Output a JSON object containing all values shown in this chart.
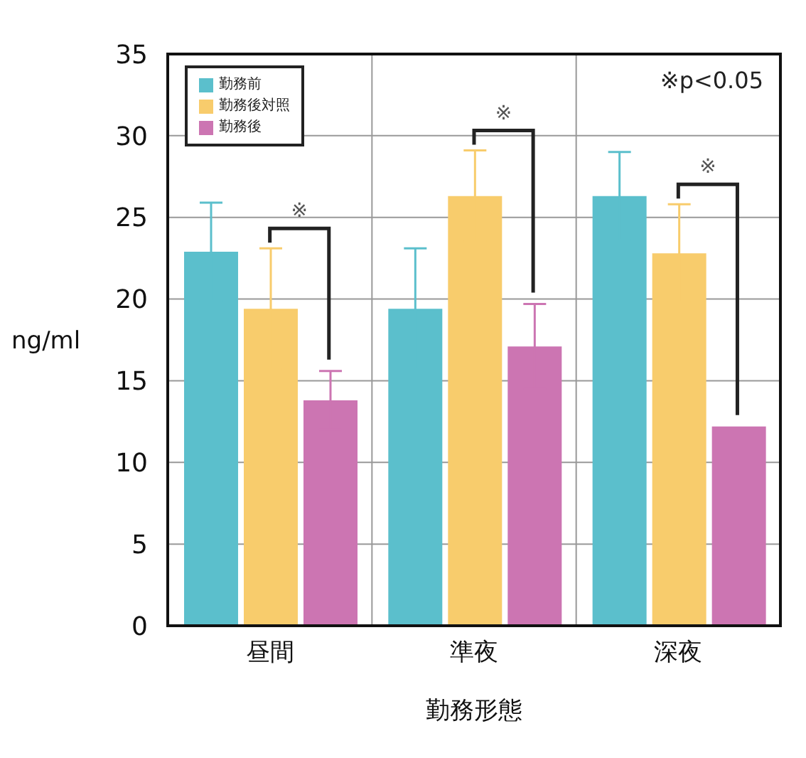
{
  "chart_data": {
    "type": "bar",
    "xlabel": "勤務形態",
    "ylabel": "ng/ml",
    "categories": [
      "昼間",
      "準夜",
      "深夜"
    ],
    "series": [
      {
        "name": "勤務前",
        "color": "#5bbfcc",
        "values": [
          22.9,
          19.4,
          26.3
        ],
        "errors": [
          3.0,
          3.7,
          2.7
        ]
      },
      {
        "name": "勤務後対照",
        "color": "#f8cc6c",
        "values": [
          19.4,
          26.3,
          22.8
        ],
        "errors": [
          3.7,
          2.8,
          3.0
        ]
      },
      {
        "name": "勤務後",
        "color": "#cc75b2",
        "values": [
          13.8,
          17.1,
          12.2
        ],
        "errors": [
          1.8,
          2.6,
          null
        ]
      }
    ],
    "ylim": [
      0,
      35
    ],
    "yticks": [
      0,
      5,
      10,
      15,
      20,
      25,
      30,
      35
    ],
    "grid": true,
    "legend": "top left",
    "annotations": [
      "※p<0.05",
      "※",
      "※",
      "※"
    ]
  }
}
